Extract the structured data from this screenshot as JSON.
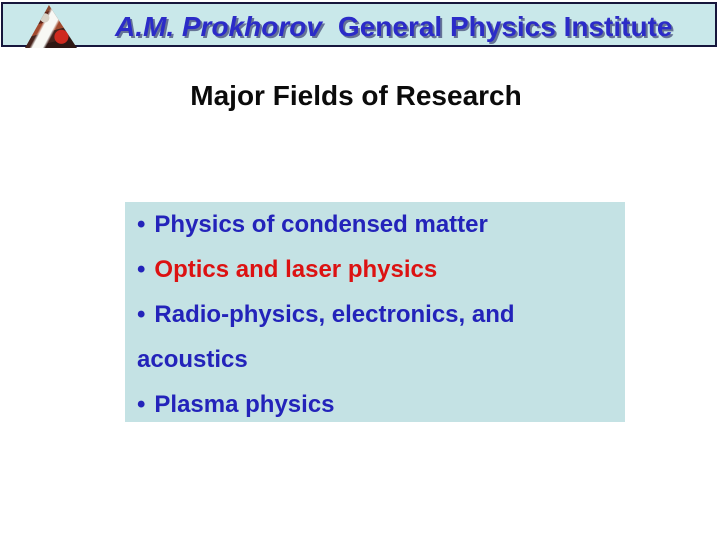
{
  "slide": {
    "header": {
      "institute_name_italic": "A.M. Prokhorov",
      "institute_name_rest": "General Physics Institute",
      "logo_icon": "triangle-photo-collage-logo"
    },
    "title": "Major Fields of Research",
    "research_fields": {
      "bullet_glyph": "•",
      "items": [
        {
          "label": "Physics of condensed matter",
          "color": "#2323ba"
        },
        {
          "label": "Optics and laser physics",
          "color": "#dc1212"
        },
        {
          "label": "Radio-physics, electronics, and acoustics",
          "color": "#2323ba"
        },
        {
          "label": "Plasma physics",
          "color": "#2323ba"
        }
      ]
    },
    "colors": {
      "header_background": "#c9e8ea",
      "header_border": "#16163c",
      "header_text": "#2b2bc8",
      "box_background": "#c4e2e4",
      "title_text": "#0b0b0b",
      "bullet": "#2323ba"
    }
  }
}
